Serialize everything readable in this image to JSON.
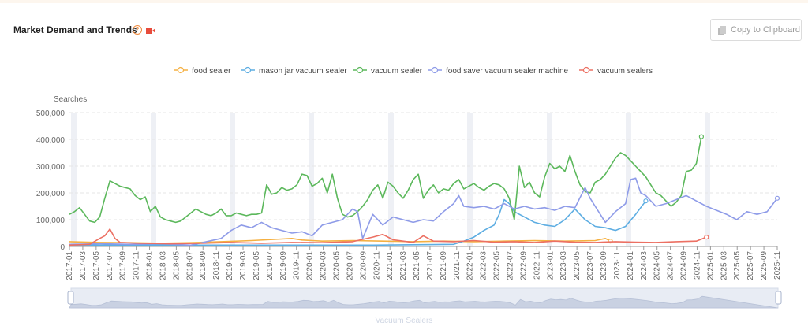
{
  "header": {
    "title": "Market Demand and Trends",
    "copy_label": "Copy to Clipboard"
  },
  "footer": {
    "watermark": "Vacuum Sealers"
  },
  "chart_data": {
    "type": "line",
    "title": "Market Demand and Trends",
    "ylabel": "Searches",
    "xlabel": "",
    "ylim": [
      0,
      500000
    ],
    "yticks": [
      0,
      100000,
      200000,
      300000,
      400000,
      500000
    ],
    "ytick_labels": [
      "0",
      "100,000",
      "200,000",
      "300,000",
      "400,000",
      "500,000"
    ],
    "x_start": "2017-01",
    "x_end": "2025-11",
    "xtick_labels": [
      "2017-01",
      "2017-03",
      "2017-05",
      "2017-07",
      "2017-09",
      "2017-11",
      "2018-01",
      "2018-03",
      "2018-05",
      "2018-07",
      "2018-09",
      "2018-11",
      "2019-01",
      "2019-03",
      "2019-05",
      "2019-07",
      "2019-09",
      "2019-11",
      "2020-01",
      "2020-03",
      "2020-05",
      "2020-07",
      "2020-09",
      "2020-11",
      "2021-01",
      "2021-03",
      "2021-05",
      "2021-07",
      "2021-09",
      "2021-11",
      "2022-01",
      "2022-03",
      "2022-05",
      "2022-07",
      "2022-09",
      "2022-11",
      "2023-01",
      "2023-03",
      "2023-05",
      "2023-07",
      "2023-09",
      "2023-11",
      "2024-01",
      "2024-03",
      "2024-05",
      "2024-07",
      "2024-09",
      "2024-11",
      "2025-01",
      "2025-03",
      "2025-05",
      "2025-07",
      "2025-09",
      "2025-11"
    ],
    "legend_position": "top-center",
    "series": [
      {
        "name": "food sealer",
        "color": "#f5b041",
        "points": [
          [
            0,
            18000
          ],
          [
            6,
            15000
          ],
          [
            12,
            14000
          ],
          [
            18,
            12000
          ],
          [
            24,
            14000
          ],
          [
            30,
            18000
          ],
          [
            36,
            22000
          ],
          [
            42,
            28000
          ],
          [
            44,
            30000
          ],
          [
            46,
            24000
          ],
          [
            48,
            22000
          ],
          [
            50,
            20000
          ],
          [
            56,
            22000
          ],
          [
            62,
            20000
          ],
          [
            68,
            18000
          ],
          [
            74,
            20000
          ],
          [
            80,
            18000
          ],
          [
            86,
            20000
          ],
          [
            92,
            22000
          ],
          [
            98,
            20000
          ],
          [
            104,
            22000
          ],
          [
            106,
            30000
          ],
          [
            107,
            20000
          ]
        ]
      },
      {
        "name": "mason jar vacuum sealer",
        "color": "#5dade2",
        "points": [
          [
            0,
            5000
          ],
          [
            24,
            5000
          ],
          [
            36,
            5000
          ],
          [
            48,
            5000
          ],
          [
            60,
            5000
          ],
          [
            72,
            7000
          ],
          [
            76,
            8000
          ],
          [
            78,
            20000
          ],
          [
            80,
            35000
          ],
          [
            82,
            60000
          ],
          [
            84,
            80000
          ],
          [
            85,
            120000
          ],
          [
            86,
            175000
          ],
          [
            87,
            160000
          ],
          [
            88,
            130000
          ],
          [
            89,
            120000
          ],
          [
            90,
            110000
          ],
          [
            92,
            90000
          ],
          [
            94,
            80000
          ],
          [
            96,
            75000
          ],
          [
            98,
            100000
          ],
          [
            100,
            140000
          ],
          [
            101,
            120000
          ],
          [
            102,
            100000
          ],
          [
            104,
            75000
          ],
          [
            106,
            70000
          ],
          [
            108,
            60000
          ],
          [
            110,
            75000
          ],
          [
            112,
            120000
          ],
          [
            114,
            170000
          ]
        ]
      },
      {
        "name": "vacuum sealer",
        "color": "#5cb85c",
        "points": [
          [
            0,
            120000
          ],
          [
            1,
            130000
          ],
          [
            2,
            145000
          ],
          [
            3,
            120000
          ],
          [
            4,
            95000
          ],
          [
            5,
            90000
          ],
          [
            6,
            110000
          ],
          [
            7,
            180000
          ],
          [
            8,
            245000
          ],
          [
            9,
            235000
          ],
          [
            10,
            225000
          ],
          [
            11,
            220000
          ],
          [
            12,
            215000
          ],
          [
            13,
            190000
          ],
          [
            14,
            175000
          ],
          [
            15,
            185000
          ],
          [
            16,
            130000
          ],
          [
            17,
            150000
          ],
          [
            18,
            110000
          ],
          [
            19,
            100000
          ],
          [
            20,
            95000
          ],
          [
            21,
            90000
          ],
          [
            22,
            95000
          ],
          [
            23,
            110000
          ],
          [
            24,
            125000
          ],
          [
            25,
            140000
          ],
          [
            26,
            130000
          ],
          [
            27,
            120000
          ],
          [
            28,
            115000
          ],
          [
            29,
            125000
          ],
          [
            30,
            140000
          ],
          [
            31,
            115000
          ],
          [
            32,
            115000
          ],
          [
            33,
            125000
          ],
          [
            34,
            120000
          ],
          [
            35,
            115000
          ],
          [
            36,
            120000
          ],
          [
            37,
            120000
          ],
          [
            38,
            125000
          ],
          [
            39,
            230000
          ],
          [
            40,
            195000
          ],
          [
            41,
            200000
          ],
          [
            42,
            220000
          ],
          [
            43,
            210000
          ],
          [
            44,
            215000
          ],
          [
            45,
            230000
          ],
          [
            46,
            270000
          ],
          [
            47,
            265000
          ],
          [
            48,
            225000
          ],
          [
            49,
            235000
          ],
          [
            50,
            255000
          ],
          [
            51,
            200000
          ],
          [
            52,
            270000
          ],
          [
            53,
            180000
          ],
          [
            54,
            120000
          ],
          [
            55,
            110000
          ],
          [
            56,
            115000
          ],
          [
            57,
            130000
          ],
          [
            58,
            150000
          ],
          [
            59,
            175000
          ],
          [
            60,
            210000
          ],
          [
            61,
            230000
          ],
          [
            62,
            180000
          ],
          [
            63,
            240000
          ],
          [
            64,
            225000
          ],
          [
            65,
            200000
          ],
          [
            66,
            180000
          ],
          [
            67,
            210000
          ],
          [
            68,
            250000
          ],
          [
            69,
            270000
          ],
          [
            70,
            180000
          ],
          [
            71,
            210000
          ],
          [
            72,
            230000
          ],
          [
            73,
            200000
          ],
          [
            74,
            215000
          ],
          [
            75,
            210000
          ],
          [
            76,
            235000
          ],
          [
            77,
            250000
          ],
          [
            78,
            215000
          ],
          [
            79,
            225000
          ],
          [
            80,
            235000
          ],
          [
            81,
            220000
          ],
          [
            82,
            210000
          ],
          [
            83,
            225000
          ],
          [
            84,
            235000
          ],
          [
            85,
            230000
          ],
          [
            86,
            215000
          ],
          [
            87,
            180000
          ],
          [
            88,
            100000
          ],
          [
            89,
            300000
          ],
          [
            90,
            220000
          ],
          [
            91,
            240000
          ],
          [
            92,
            200000
          ],
          [
            93,
            185000
          ],
          [
            94,
            260000
          ],
          [
            95,
            310000
          ],
          [
            96,
            290000
          ],
          [
            97,
            300000
          ],
          [
            98,
            280000
          ],
          [
            99,
            340000
          ],
          [
            100,
            280000
          ],
          [
            101,
            230000
          ],
          [
            102,
            205000
          ],
          [
            103,
            200000
          ],
          [
            104,
            240000
          ],
          [
            105,
            250000
          ],
          [
            106,
            270000
          ],
          [
            107,
            300000
          ],
          [
            108,
            330000
          ],
          [
            109,
            350000
          ],
          [
            110,
            340000
          ],
          [
            111,
            320000
          ],
          [
            112,
            300000
          ],
          [
            113,
            280000
          ],
          [
            114,
            260000
          ],
          [
            115,
            230000
          ],
          [
            116,
            200000
          ],
          [
            117,
            190000
          ],
          [
            118,
            170000
          ],
          [
            119,
            150000
          ],
          [
            120,
            165000
          ],
          [
            121,
            190000
          ],
          [
            122,
            280000
          ],
          [
            123,
            285000
          ],
          [
            124,
            310000
          ],
          [
            125,
            410000
          ]
        ]
      },
      {
        "name": "food saver vacuum sealer machine",
        "color": "#8e9be8",
        "points": [
          [
            0,
            8000
          ],
          [
            6,
            10000
          ],
          [
            12,
            8000
          ],
          [
            18,
            10000
          ],
          [
            24,
            5000
          ],
          [
            30,
            30000
          ],
          [
            32,
            60000
          ],
          [
            34,
            80000
          ],
          [
            36,
            70000
          ],
          [
            38,
            90000
          ],
          [
            40,
            70000
          ],
          [
            42,
            60000
          ],
          [
            44,
            50000
          ],
          [
            46,
            55000
          ],
          [
            48,
            40000
          ],
          [
            50,
            80000
          ],
          [
            52,
            90000
          ],
          [
            54,
            100000
          ],
          [
            56,
            140000
          ],
          [
            57,
            130000
          ],
          [
            58,
            30000
          ],
          [
            60,
            120000
          ],
          [
            62,
            80000
          ],
          [
            64,
            110000
          ],
          [
            66,
            100000
          ],
          [
            68,
            90000
          ],
          [
            70,
            100000
          ],
          [
            72,
            95000
          ],
          [
            74,
            130000
          ],
          [
            76,
            160000
          ],
          [
            77,
            190000
          ],
          [
            78,
            150000
          ],
          [
            80,
            145000
          ],
          [
            82,
            150000
          ],
          [
            84,
            140000
          ],
          [
            86,
            160000
          ],
          [
            88,
            140000
          ],
          [
            90,
            150000
          ],
          [
            92,
            140000
          ],
          [
            94,
            145000
          ],
          [
            96,
            135000
          ],
          [
            98,
            150000
          ],
          [
            100,
            145000
          ],
          [
            102,
            220000
          ],
          [
            103,
            180000
          ],
          [
            104,
            150000
          ],
          [
            106,
            90000
          ],
          [
            108,
            130000
          ],
          [
            110,
            160000
          ],
          [
            111,
            250000
          ],
          [
            112,
            255000
          ],
          [
            113,
            200000
          ],
          [
            114,
            190000
          ],
          [
            116,
            150000
          ],
          [
            118,
            160000
          ],
          [
            120,
            175000
          ],
          [
            122,
            190000
          ],
          [
            124,
            170000
          ],
          [
            126,
            150000
          ],
          [
            128,
            135000
          ],
          [
            130,
            120000
          ],
          [
            132,
            100000
          ],
          [
            134,
            130000
          ],
          [
            136,
            120000
          ],
          [
            138,
            130000
          ],
          [
            140,
            180000
          ]
        ]
      },
      {
        "name": "vacuum sealers",
        "color": "#ec7063",
        "points": [
          [
            0,
            5000
          ],
          [
            4,
            8000
          ],
          [
            6,
            30000
          ],
          [
            7,
            40000
          ],
          [
            8,
            65000
          ],
          [
            9,
            30000
          ],
          [
            10,
            15000
          ],
          [
            14,
            12000
          ],
          [
            20,
            10000
          ],
          [
            26,
            12000
          ],
          [
            32,
            15000
          ],
          [
            38,
            12000
          ],
          [
            44,
            15000
          ],
          [
            50,
            14000
          ],
          [
            56,
            18000
          ],
          [
            60,
            35000
          ],
          [
            62,
            45000
          ],
          [
            64,
            25000
          ],
          [
            68,
            15000
          ],
          [
            70,
            40000
          ],
          [
            72,
            20000
          ],
          [
            76,
            18000
          ],
          [
            80,
            22000
          ],
          [
            84,
            16000
          ],
          [
            88,
            18000
          ],
          [
            92,
            15000
          ],
          [
            96,
            20000
          ],
          [
            100,
            16000
          ],
          [
            104,
            15000
          ],
          [
            108,
            18000
          ],
          [
            112,
            16000
          ],
          [
            116,
            15000
          ],
          [
            120,
            18000
          ],
          [
            124,
            20000
          ],
          [
            126,
            35000
          ]
        ]
      }
    ]
  }
}
